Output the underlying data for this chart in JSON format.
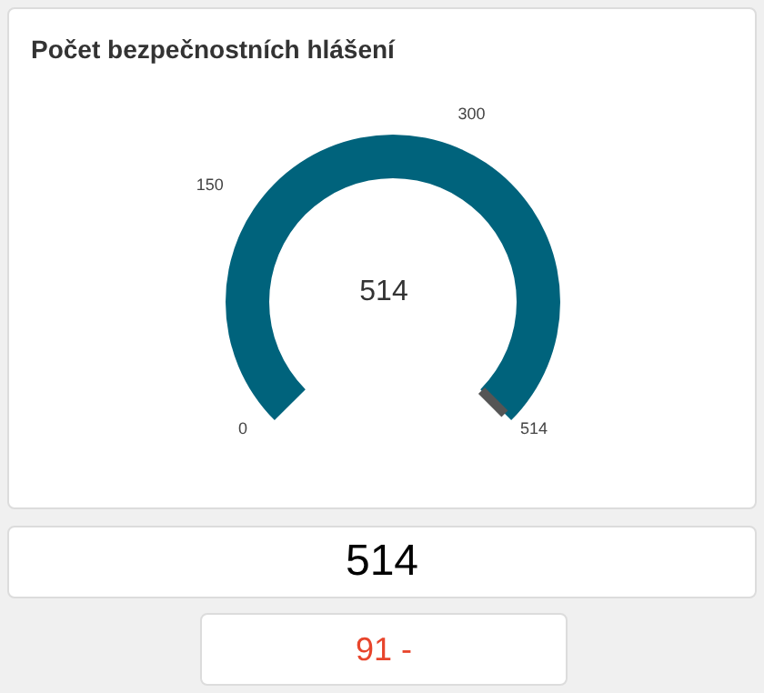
{
  "chart_data": [
    {
      "type": "other",
      "title": "Počet bezpečnostních hlášení",
      "values": [
        514
      ],
      "colors": [
        "#00637c"
      ],
      "data_labels": true,
      "annotations": [
        "0",
        "150",
        "300",
        "514"
      ]
    },
    {
      "type": "other",
      "annotations": [
        "514"
      ]
    },
    {
      "type": "other",
      "annotations": [
        "91 -"
      ]
    }
  ]
}
